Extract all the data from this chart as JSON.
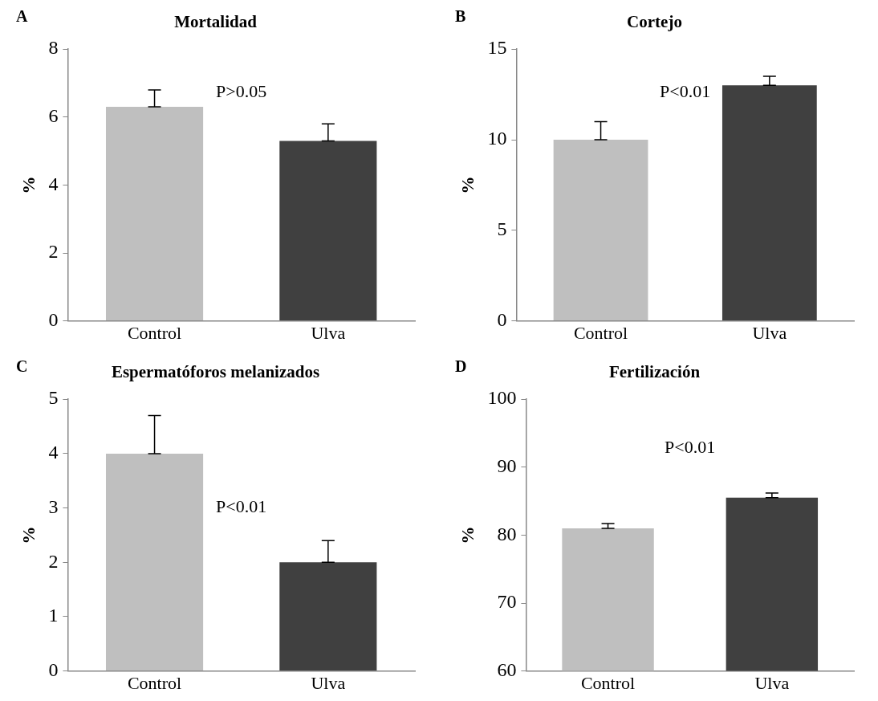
{
  "chart_data": [
    {
      "type": "bar",
      "title": "Mortalidad",
      "ylabel": "%",
      "categories": [
        "Control",
        "Ulva"
      ],
      "values": [
        6.3,
        5.3
      ],
      "colors": [
        "#bfbfbf",
        "#404040"
      ],
      "errors": [
        [
          6.3,
          6.8
        ],
        [
          5.3,
          5.8
        ]
      ],
      "ylim": [
        0,
        8
      ],
      "yticks": [
        0,
        2,
        4,
        6,
        8
      ],
      "grid": false,
      "legend": false,
      "annotations": [
        "A",
        "P>0.05"
      ]
    },
    {
      "type": "bar",
      "title": "Cortejo",
      "ylabel": "%",
      "categories": [
        "Control",
        "Ulva"
      ],
      "values": [
        10,
        13
      ],
      "colors": [
        "#bfbfbf",
        "#404040"
      ],
      "errors": [
        [
          10,
          11
        ],
        [
          13,
          13.5
        ]
      ],
      "ylim": [
        0,
        15
      ],
      "yticks": [
        0,
        5,
        10,
        15
      ],
      "grid": false,
      "legend": false,
      "annotations": [
        "B",
        "P<0.01"
      ]
    },
    {
      "type": "bar",
      "title": "Espermatóforos melanizados",
      "ylabel": "%",
      "categories": [
        "Control",
        "Ulva"
      ],
      "values": [
        4,
        2
      ],
      "colors": [
        "#bfbfbf",
        "#404040"
      ],
      "errors": [
        [
          4,
          4.7
        ],
        [
          2,
          2.4
        ]
      ],
      "ylim": [
        0,
        5
      ],
      "yticks": [
        0,
        1,
        2,
        3,
        4,
        5
      ],
      "grid": false,
      "legend": false,
      "annotations": [
        "C",
        "P<0.01"
      ]
    },
    {
      "type": "bar",
      "title": "Fertilización",
      "ylabel": "%",
      "categories": [
        "Control",
        "Ulva"
      ],
      "values": [
        81,
        85.5
      ],
      "colors": [
        "#bfbfbf",
        "#404040"
      ],
      "errors": [
        [
          81,
          81.7
        ],
        [
          85.5,
          86.2
        ]
      ],
      "ylim": [
        60,
        100
      ],
      "yticks": [
        60,
        70,
        80,
        90,
        100
      ],
      "grid": false,
      "legend": false,
      "annotations": [
        "D",
        "P<0.01"
      ]
    }
  ]
}
